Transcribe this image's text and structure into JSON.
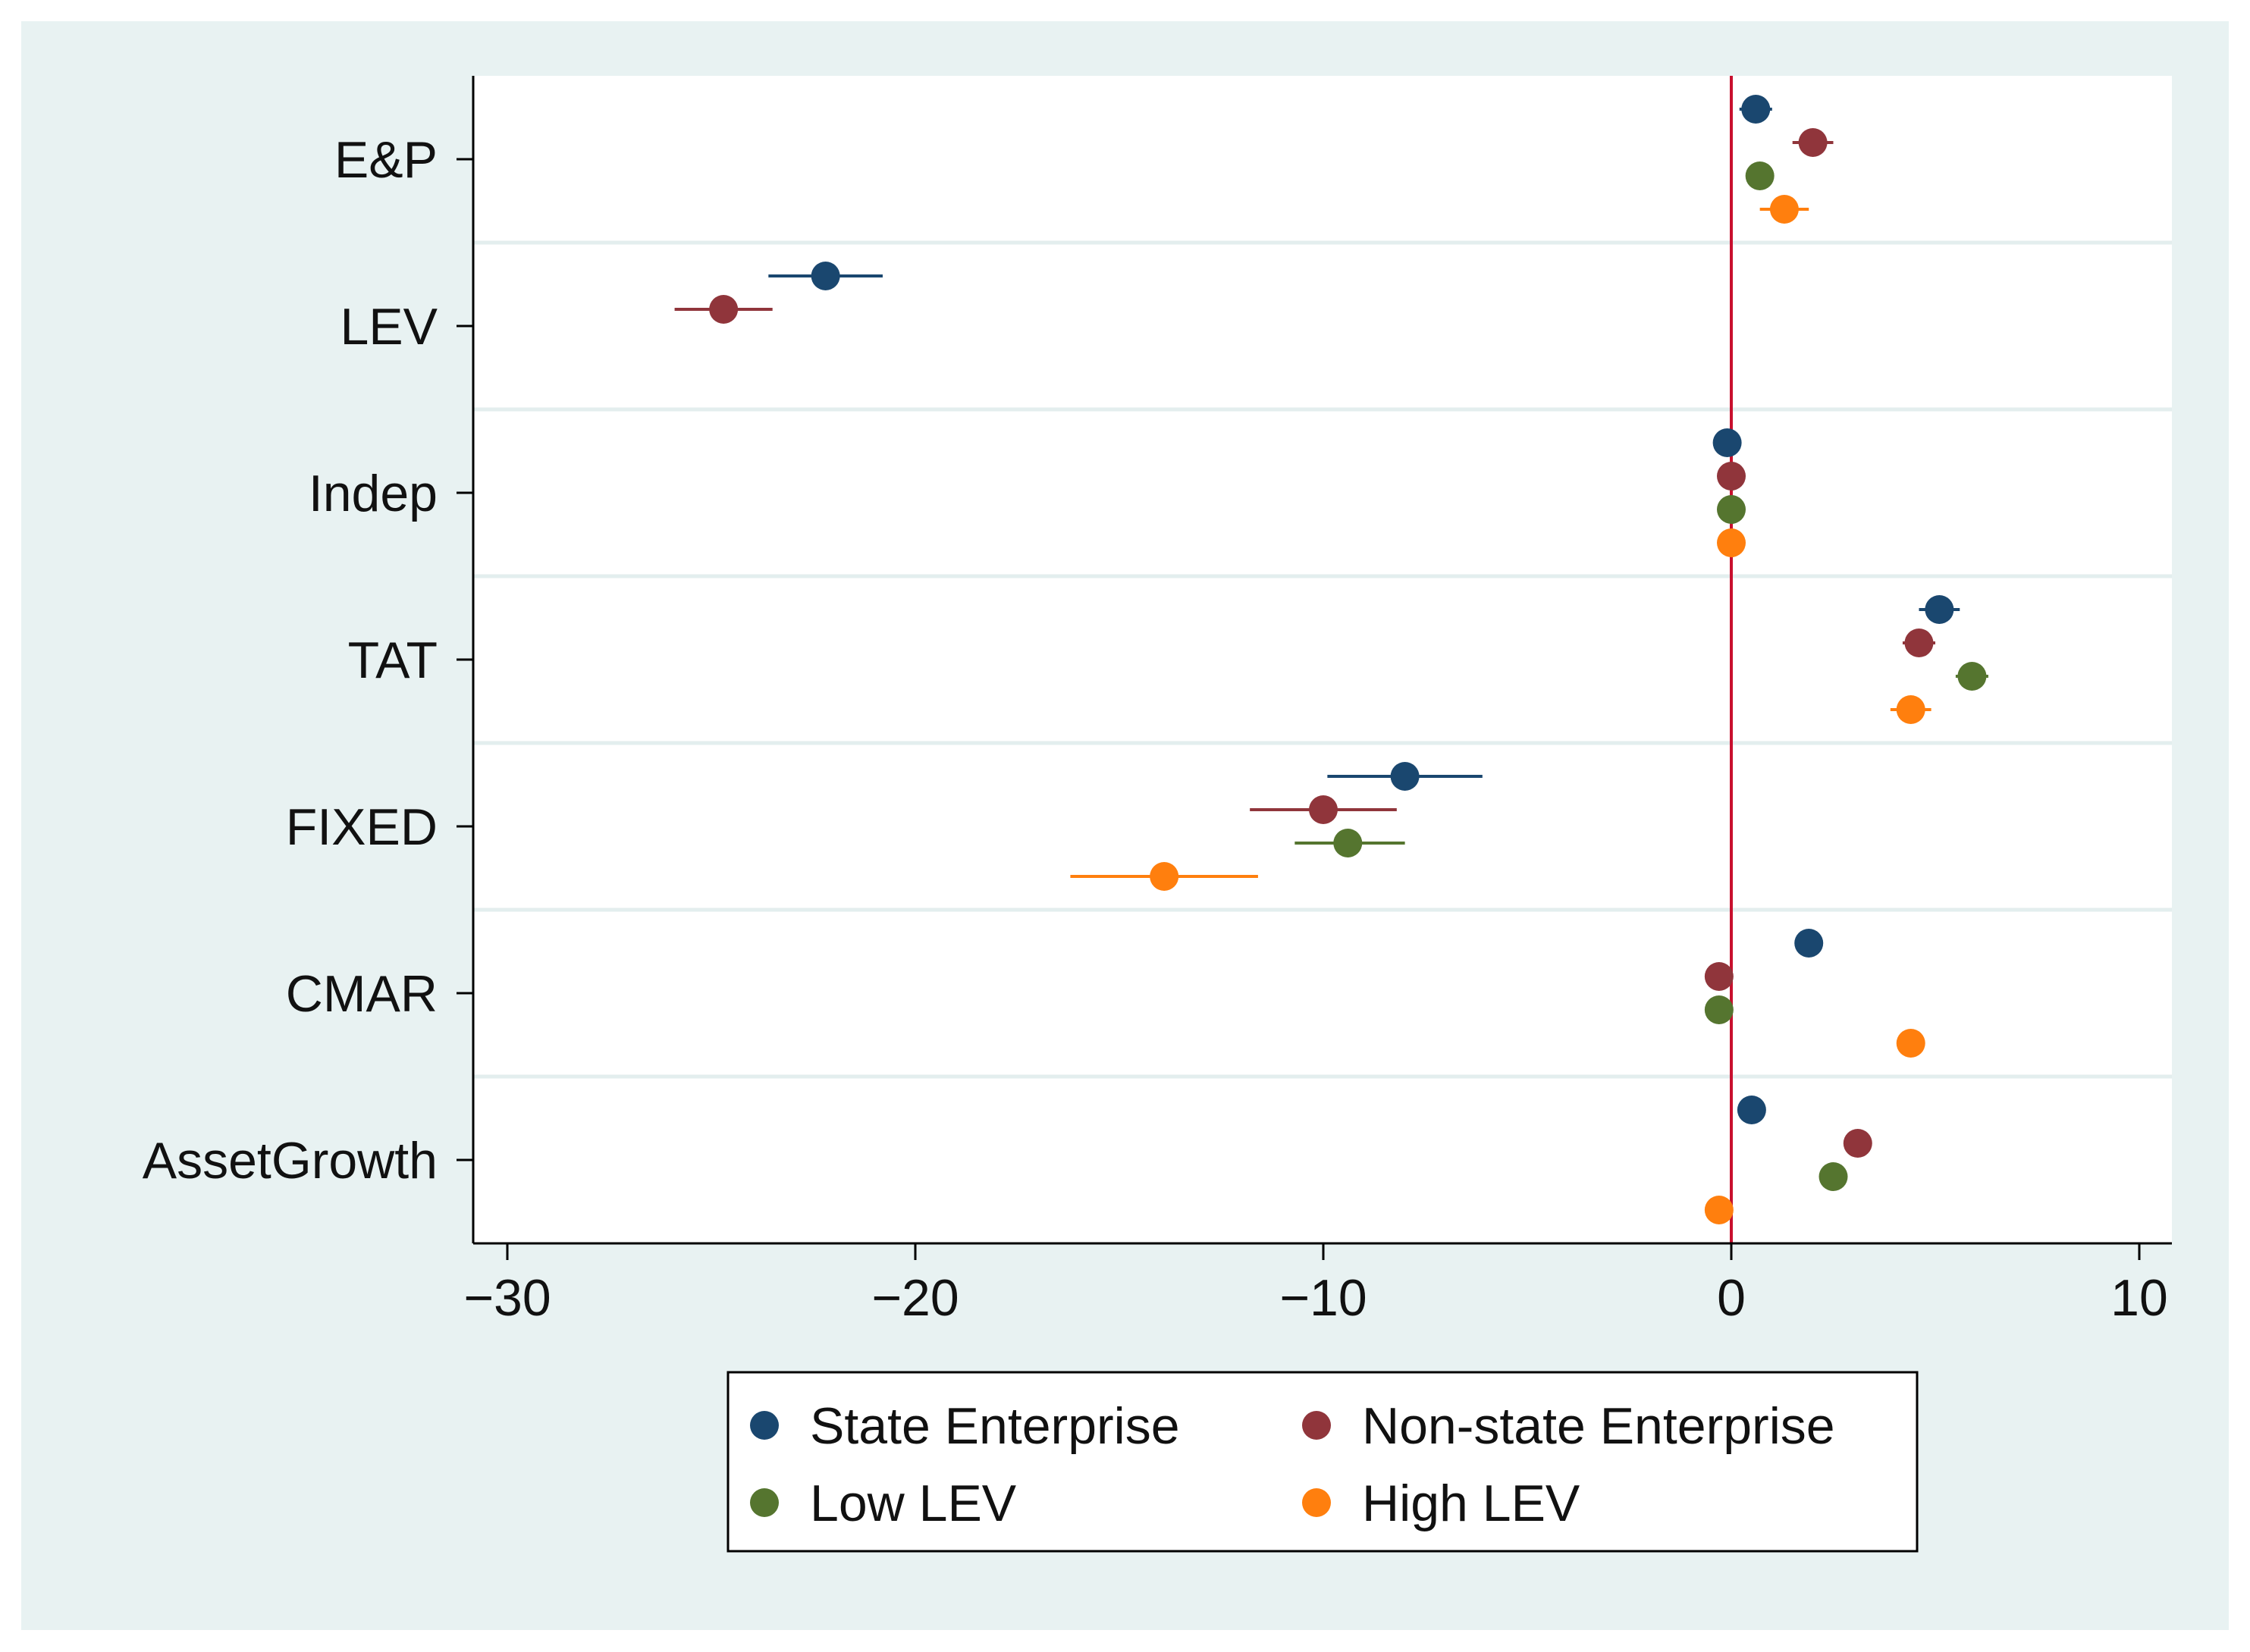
{
  "chart_data": {
    "type": "scatter",
    "subtype": "coefficient-plot",
    "title": "",
    "xlabel": "",
    "ylabel": "",
    "xlim": [
      -31,
      11
    ],
    "x_ticks": [
      -30,
      -20,
      -10,
      0,
      10
    ],
    "x_tick_labels": [
      "−30",
      "−20",
      "−10",
      "0",
      "10"
    ],
    "reference_line": {
      "x": 0,
      "color": "#c8102e"
    },
    "legend_position": "bottom",
    "categories": [
      "E&P",
      "LEV",
      "Indep",
      "TAT",
      "FIXED",
      "CMAR",
      "AssetGrowth"
    ],
    "series": [
      {
        "name": "State Enterprise",
        "color": "#1a476f",
        "values": [
          0.6,
          -22.2,
          -0.1,
          5.1,
          -8.0,
          1.9,
          0.5
        ],
        "ci_low": [
          0.2,
          -23.6,
          -0.2,
          4.6,
          -9.9,
          1.8,
          0.4
        ],
        "ci_high": [
          1.0,
          -20.8,
          0.0,
          5.6,
          -6.1,
          2.0,
          0.6
        ]
      },
      {
        "name": "Non-state Enterprise",
        "color": "#90353b",
        "values": [
          2.0,
          -24.7,
          0.0,
          4.6,
          -10.0,
          -0.3,
          3.1
        ],
        "ci_low": [
          1.5,
          -25.9,
          -0.1,
          4.2,
          -11.8,
          -0.4,
          3.0
        ],
        "ci_high": [
          2.5,
          -23.5,
          0.1,
          5.0,
          -8.2,
          -0.2,
          3.2
        ]
      },
      {
        "name": "Low LEV",
        "color": "#55752f",
        "values": [
          0.7,
          null,
          0.0,
          5.9,
          -9.4,
          -0.3,
          2.5
        ],
        "ci_low": [
          0.5,
          null,
          -0.1,
          5.5,
          -10.7,
          -0.4,
          2.4
        ],
        "ci_high": [
          0.9,
          null,
          0.1,
          6.3,
          -8.0,
          -0.2,
          2.6
        ]
      },
      {
        "name": "High LEV",
        "color": "#ff7f0e",
        "values": [
          1.3,
          null,
          0.0,
          4.4,
          -13.9,
          4.4,
          -0.3
        ],
        "ci_low": [
          0.7,
          null,
          -0.1,
          3.9,
          -16.2,
          4.3,
          -0.4
        ],
        "ci_high": [
          1.9,
          null,
          0.1,
          4.9,
          -11.6,
          4.5,
          -0.2
        ]
      }
    ]
  }
}
